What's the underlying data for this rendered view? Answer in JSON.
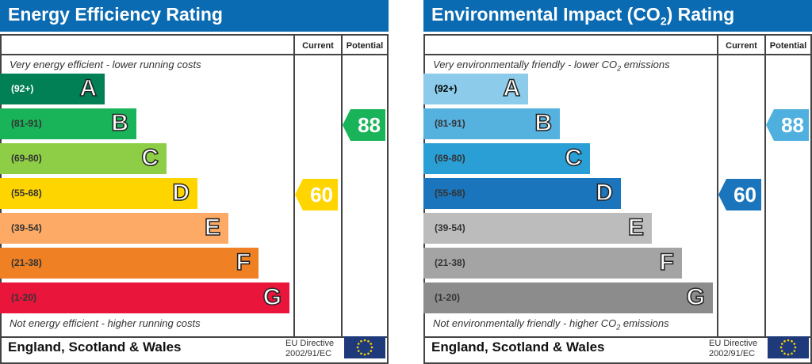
{
  "chart_data": [
    {
      "type": "bar",
      "title": "Energy Efficiency Rating",
      "column_headers": [
        "Current",
        "Potential"
      ],
      "top_note": "Very energy efficient - lower running costs",
      "bottom_note": "Not energy efficient - higher running costs",
      "categories": [
        "A",
        "B",
        "C",
        "D",
        "E",
        "F",
        "G"
      ],
      "ranges": [
        "(92+)",
        "(81-91)",
        "(69-80)",
        "(55-68)",
        "(39-54)",
        "(21-38)",
        "(1-20)"
      ],
      "colors": [
        "#008054",
        "#19b459",
        "#8dce46",
        "#ffd500",
        "#fcaa65",
        "#ef8023",
        "#e9153b"
      ],
      "current": {
        "value": 60,
        "band": "D",
        "color": "#ffd500"
      },
      "potential": {
        "value": 88,
        "band": "B",
        "color": "#19b459"
      },
      "footer": "England, Scotland & Wales",
      "directive": [
        "EU Directive",
        "2002/91/EC"
      ]
    },
    {
      "type": "bar",
      "title": "Environmental Impact (CO",
      "title_sub": "2",
      "title_end": ") Rating",
      "column_headers": [
        "Current",
        "Potential"
      ],
      "top_note": "Very environmentally friendly - lower CO",
      "top_note_end": " emissions",
      "bottom_note": "Not environmentally friendly - higher CO",
      "bottom_note_end": " emissions",
      "categories": [
        "A",
        "B",
        "C",
        "D",
        "E",
        "F",
        "G"
      ],
      "ranges": [
        "(92+)",
        "(81-91)",
        "(69-80)",
        "(55-68)",
        "(39-54)",
        "(21-38)",
        "(1-20)"
      ],
      "colors": [
        "#8ccbe9",
        "#55b1de",
        "#2a9fd6",
        "#1a75bc",
        "#bcbcbc",
        "#a4a4a4",
        "#8c8c8c"
      ],
      "current": {
        "value": 60,
        "band": "D",
        "color": "#1a75bc"
      },
      "potential": {
        "value": 88,
        "band": "B",
        "color": "#4fb0df"
      },
      "footer": "England, Scotland & Wales",
      "directive": [
        "EU Directive",
        "2002/91/EC"
      ]
    }
  ]
}
